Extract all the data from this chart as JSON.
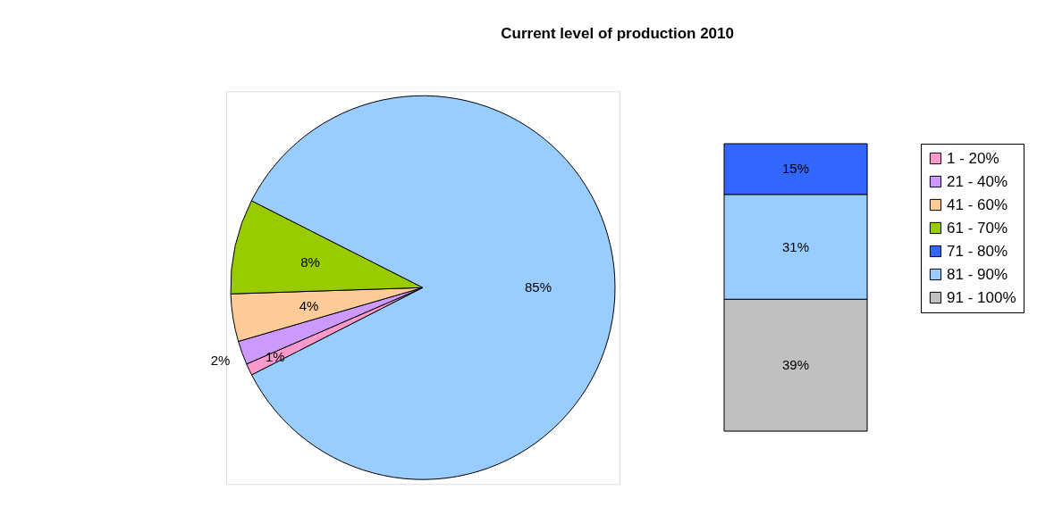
{
  "chart_data": [
    {
      "type": "pie",
      "title": "Current level of production 2010",
      "categories": [
        "1 - 20%",
        "21 - 40%",
        "41 - 60%",
        "61 - 70%",
        null
      ],
      "values": [
        1,
        2,
        4,
        8,
        85
      ],
      "colors": [
        "#ff99cc",
        "#cc99ff",
        "#ffcc99",
        "#99cc00",
        "#99ccff"
      ],
      "value_labels": [
        "1%",
        "2%",
        "4%",
        "8%",
        "85%"
      ],
      "legend": "right"
    },
    {
      "type": "bar",
      "stacked": true,
      "categories": [
        null
      ],
      "legend": "right",
      "series": [
        {
          "name": "91 - 100%",
          "color": "#c0c0c0",
          "values": [
            39
          ],
          "value_labels": [
            "39%"
          ]
        },
        {
          "name": "81 - 90%",
          "color": "#99ccff",
          "values": [
            31
          ],
          "value_labels": [
            "31%"
          ]
        },
        {
          "name": "71 - 80%",
          "color": "#3366ff",
          "values": [
            15
          ],
          "value_labels": [
            "15%"
          ]
        }
      ]
    }
  ]
}
